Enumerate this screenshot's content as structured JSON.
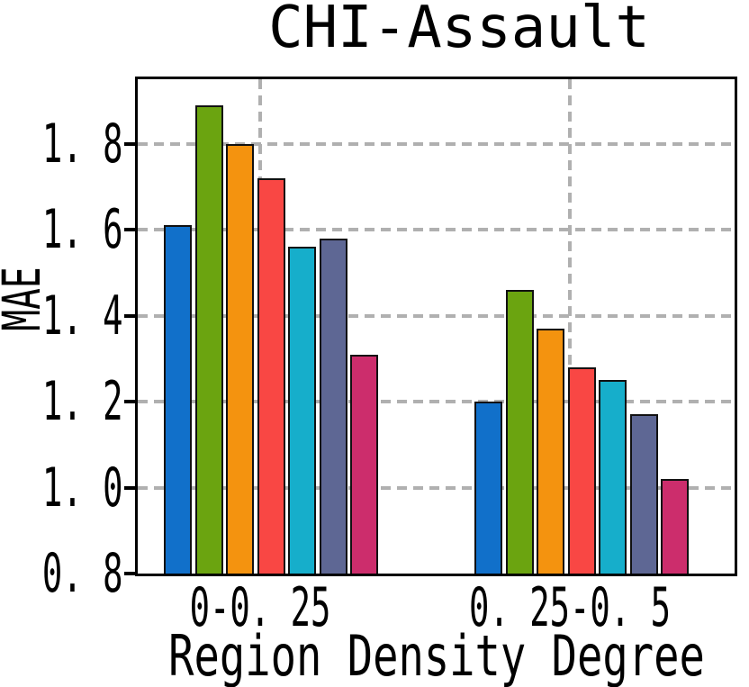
{
  "title": "CHI-Assault",
  "axes": {
    "ylabel": "MAE",
    "xlabel": "Region Density Degree",
    "ytick_labels": [
      "0. 8",
      "1. 0",
      "1. 2",
      "1. 4",
      "1. 6",
      "1. 8"
    ],
    "xtick_labels": [
      "0-0. 25",
      "0. 25-0. 5"
    ]
  },
  "chart_data": {
    "type": "bar",
    "title": "CHI-Assault",
    "xlabel": "Region Density Degree",
    "ylabel": "MAE",
    "categories": [
      "0-0.25",
      "0.25-0.5"
    ],
    "series": [
      {
        "name": "blue",
        "color": "#1170ca",
        "values": [
          1.61,
          1.2
        ]
      },
      {
        "name": "green",
        "color": "#6ba410",
        "values": [
          1.89,
          1.46
        ]
      },
      {
        "name": "orange",
        "color": "#f4930f",
        "values": [
          1.8,
          1.37
        ]
      },
      {
        "name": "red",
        "color": "#f94744",
        "values": [
          1.72,
          1.28
        ]
      },
      {
        "name": "cyan",
        "color": "#16aecb",
        "values": [
          1.56,
          1.25
        ]
      },
      {
        "name": "slate",
        "color": "#5e6794",
        "values": [
          1.58,
          1.17
        ]
      },
      {
        "name": "magenta",
        "color": "#cc2d6c",
        "values": [
          1.31,
          1.02
        ]
      }
    ],
    "yticks": [
      0.8,
      1.0,
      1.2,
      1.4,
      1.6,
      1.8
    ],
    "ylim": [
      0.8,
      1.95
    ],
    "grid": true,
    "grid_style": "dashed",
    "legend": false
  },
  "colors": {
    "grid": "#b0b0b0",
    "bar_edge": "#111111",
    "spine": "#000000",
    "background": "#ffffff"
  }
}
